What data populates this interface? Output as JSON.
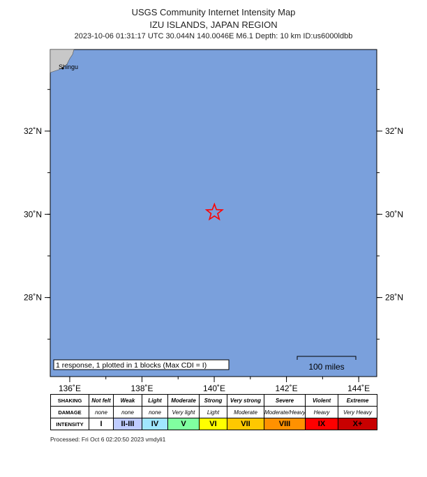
{
  "header": {
    "title": "USGS Community Internet Intensity Map",
    "region": "IZU ISLANDS, JAPAN REGION",
    "event": "2023-10-06 01:31:17 UTC 30.044N 140.0046E M6.1 Depth: 10 km ID:us6000ldbb"
  },
  "map": {
    "lat_range": [
      26.1,
      33.96
    ],
    "lon_range": [
      135.46,
      144.5
    ],
    "lat_ticks": [
      {
        "value": 28,
        "label": "28˚N"
      },
      {
        "value": 30,
        "label": "30˚N"
      },
      {
        "value": 32,
        "label": "32˚N"
      }
    ],
    "lon_ticks": [
      {
        "value": 136,
        "label": "136˚E"
      },
      {
        "value": 138,
        "label": "138˚E"
      },
      {
        "value": 140,
        "label": "140˚E"
      },
      {
        "value": 142,
        "label": "142˚E"
      },
      {
        "value": 144,
        "label": "144˚E"
      }
    ],
    "epicenter": {
      "lat": 30.044,
      "lon": 140.0046
    },
    "place": "Shingu",
    "note": "1 response, 1 plotted in 1 blocks (Max CDI = I)",
    "scale_label": "100 miles"
  },
  "legend": {
    "row_labels": [
      "SHAKING",
      "DAMAGE",
      "INTENSITY"
    ],
    "shaking": [
      "Not felt",
      "Weak",
      "Light",
      "Moderate",
      "Strong",
      "Very strong",
      "Severe",
      "Violent",
      "Extreme"
    ],
    "damage": [
      "none",
      "none",
      "none",
      "Very light",
      "Light",
      "Moderate",
      "Moderate/Heavy",
      "Heavy",
      "Very Heavy"
    ],
    "intensity": [
      "I",
      "II-III",
      "IV",
      "V",
      "VI",
      "VII",
      "VIII",
      "IX",
      "X+"
    ],
    "colors": [
      "#ffffff",
      "#bfccff",
      "#a0e6ff",
      "#80ffa0",
      "#ffff00",
      "#ffc800",
      "#ff9100",
      "#ff0000",
      "#c80000"
    ]
  },
  "footer": "Processed: Fri Oct  6 02:20:50 2023 vmdyli1"
}
